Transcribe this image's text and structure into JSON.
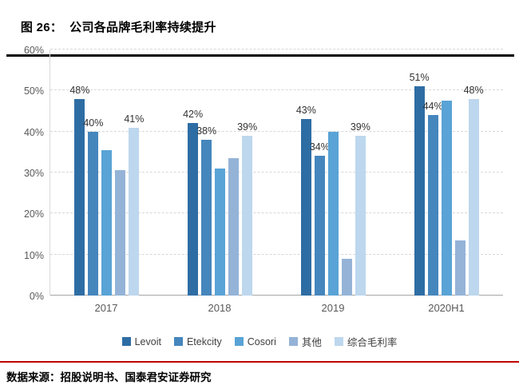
{
  "header": {
    "title": "图 26：  公司各品牌毛利率持续提升"
  },
  "footer": {
    "source": "数据来源：招股说明书、国泰君安证券研究",
    "divider_color": "#c00000"
  },
  "chart_data": {
    "type": "bar",
    "title": "公司各品牌毛利率持续提升",
    "categories": [
      "2017",
      "2018",
      "2019",
      "2020H1"
    ],
    "series": [
      {
        "name": "Levoit",
        "color": "#2e6da4",
        "values": [
          48,
          42,
          43,
          51
        ],
        "labels": [
          "48%",
          "42%",
          "43%",
          "51%"
        ]
      },
      {
        "name": "Etekcity",
        "color": "#4586bd",
        "values": [
          40,
          38,
          34,
          44
        ],
        "labels": [
          "40%",
          "38%",
          "34%",
          "44%"
        ]
      },
      {
        "name": "Cosori",
        "color": "#59a3d6",
        "values": [
          35.5,
          31,
          40,
          47.5
        ],
        "labels": [
          "",
          "",
          "",
          ""
        ]
      },
      {
        "name": "其他",
        "color": "#94b3d7",
        "values": [
          30.5,
          33.5,
          9,
          13.5
        ],
        "labels": [
          "",
          "",
          "",
          ""
        ]
      },
      {
        "name": "综合毛利率",
        "color": "#bdd7ee",
        "values": [
          41,
          39,
          39,
          48
        ],
        "labels": [
          "41%",
          "39%",
          "39%",
          "48%"
        ]
      }
    ],
    "ylim": [
      0,
      60
    ],
    "yticks": [
      "0%",
      "10%",
      "20%",
      "30%",
      "40%",
      "50%",
      "60%"
    ],
    "grid": "dashed-horizontal",
    "legend_position": "bottom",
    "xlabel": "",
    "ylabel": ""
  }
}
